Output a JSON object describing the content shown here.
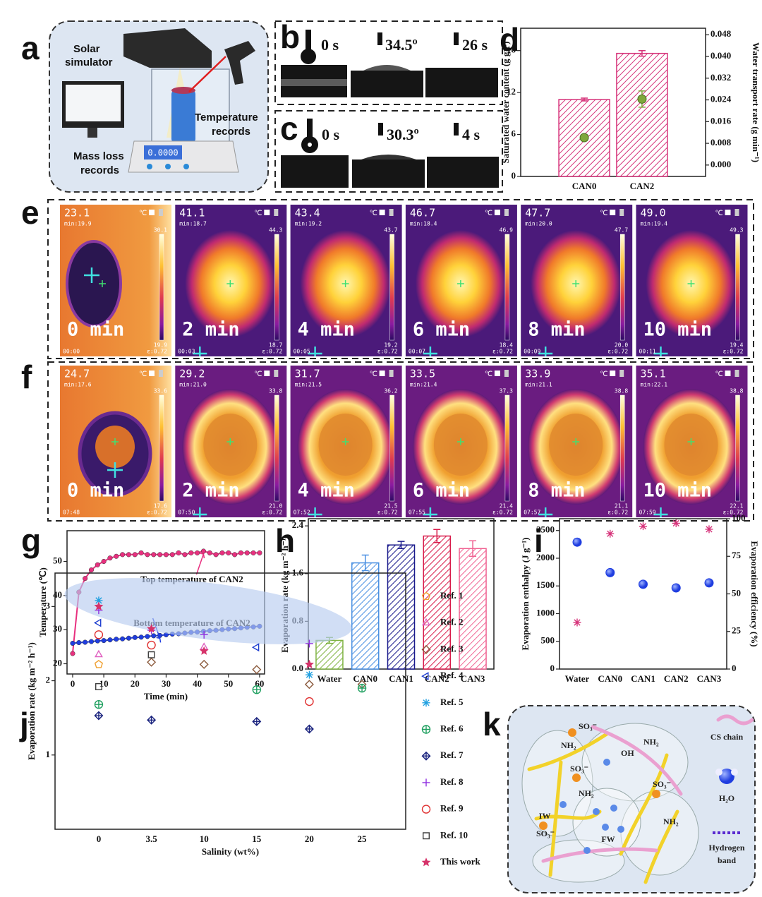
{
  "panel_labels": [
    "a",
    "b",
    "c",
    "d",
    "e",
    "f",
    "g",
    "h",
    "i",
    "j",
    "k"
  ],
  "a": {
    "solar_simulator": [
      "Solar",
      "simulator"
    ],
    "temperature_records": [
      "Temperature",
      "records"
    ],
    "mass_loss_records": [
      "Mass loss",
      "records"
    ],
    "display": "0.0000"
  },
  "b": {
    "texts": [
      "0 s",
      "34.5º",
      "26 s"
    ]
  },
  "c": {
    "texts": [
      "0 s",
      "30.3º",
      "4 s"
    ]
  },
  "thermal": {
    "unit": "℃",
    "emissivity": "ε:0.72",
    "e": [
      {
        "reading": "23.1",
        "min": "min:19.9",
        "bar_max": "30.1",
        "bar_min": "19.9",
        "time": "0 min",
        "clock": "00:00"
      },
      {
        "reading": "41.1",
        "min": "min:18.7",
        "bar_max": "44.3",
        "bar_min": "18.7",
        "time": "2 min",
        "clock": "00:03"
      },
      {
        "reading": "43.4",
        "min": "min:19.2",
        "bar_max": "43.7",
        "bar_min": "19.2",
        "time": "4 min",
        "clock": "00:05"
      },
      {
        "reading": "46.7",
        "min": "min:18.4",
        "bar_max": "46.9",
        "bar_min": "18.4",
        "time": "6 min",
        "clock": "00:07"
      },
      {
        "reading": "47.7",
        "min": "min:20.0",
        "bar_max": "47.7",
        "bar_min": "20.0",
        "time": "8 min",
        "clock": "00:09"
      },
      {
        "reading": "49.0",
        "min": "min:19.4",
        "bar_max": "49.3",
        "bar_min": "19.4",
        "time": "10 min",
        "clock": "00:11"
      }
    ],
    "f": [
      {
        "reading": "24.7",
        "min": "min:17.6",
        "bar_max": "33.6",
        "bar_min": "17.6",
        "time": "0 min",
        "clock": "07:48"
      },
      {
        "reading": "29.2",
        "min": "min:21.0",
        "bar_max": "33.8",
        "bar_min": "21.0",
        "time": "2 min",
        "clock": "07:50"
      },
      {
        "reading": "31.7",
        "min": "min:21.5",
        "bar_max": "36.2",
        "bar_min": "21.5",
        "time": "4 min",
        "clock": "07:52"
      },
      {
        "reading": "33.5",
        "min": "min:21.4",
        "bar_max": "37.3",
        "bar_min": "21.4",
        "time": "6 min",
        "clock": "07:55"
      },
      {
        "reading": "33.9",
        "min": "min:21.1",
        "bar_max": "38.8",
        "bar_min": "21.1",
        "time": "8 min",
        "clock": "07:57"
      },
      {
        "reading": "35.1",
        "min": "min:22.1",
        "bar_max": "38.8",
        "bar_min": "22.1",
        "time": "10 min",
        "clock": "07:59"
      }
    ]
  },
  "k": {
    "cs_chain": "CS chain",
    "water": "H₂O",
    "hydrogen_band": [
      "Hydrogen",
      "band"
    ],
    "fw": "FW",
    "iw": "IW",
    "nh2": "NH₂",
    "so3": "SO₃⁻",
    "oh": "OH"
  },
  "chart_data": [
    {
      "type": "bar",
      "categories": [
        "CAN0",
        "CAN2"
      ],
      "ylabel": "Saturated water content (g g⁻¹)",
      "y2label": "Water transport rate (g min⁻¹)",
      "ylim": [
        0,
        21.2
      ],
      "yticks": [
        0,
        6,
        12,
        18
      ],
      "y2lim": [
        -0.0042,
        0.0504
      ],
      "y2ticks": [
        {
          "value": 0,
          "label": "0.000"
        },
        {
          "value": 0.008,
          "label": "0.008"
        },
        {
          "value": 0.016,
          "label": "0.016"
        },
        {
          "value": 0.024,
          "label": "0.024"
        },
        {
          "value": 0.032,
          "label": "0.032"
        },
        {
          "value": 0.04,
          "label": "0.040"
        },
        {
          "value": 0.048,
          "label": "0.048"
        }
      ],
      "series": [
        {
          "color": "#d6337a",
          "hatch": true,
          "values": [
            11.0,
            17.6
          ],
          "errors": [
            0.2,
            0.4
          ]
        },
        {
          "color": "#7fa83c",
          "axis": "y2",
          "marker": "circle-filled",
          "values": [
            0.0101,
            0.0243
          ],
          "errors": [
            0.001,
            0.003
          ]
        }
      ]
    },
    {
      "type": "line",
      "xlabel": "Time (min)",
      "ylabel": "Temperature (℃)",
      "xlim": [
        -1.8,
        61.6
      ],
      "xticks": [
        0,
        10,
        20,
        30,
        40,
        50,
        60
      ],
      "ylim": [
        17,
        59
      ],
      "yticks": [
        20,
        30,
        40,
        50
      ],
      "x": [
        0,
        2,
        4,
        6,
        8,
        10,
        12,
        14,
        16,
        18,
        20,
        22,
        24,
        26,
        28,
        30,
        32,
        34,
        36,
        38,
        40,
        42,
        44,
        46,
        48,
        50,
        52,
        54,
        56,
        58,
        60
      ],
      "series": [
        {
          "name": "Top temperature of CAN2",
          "color": "#e8307f",
          "values": [
            23,
            41,
            45,
            47.5,
            49,
            50,
            51,
            51.5,
            52,
            52,
            52,
            52.5,
            52,
            52,
            52,
            52,
            52,
            52.5,
            52,
            52.5,
            52.5,
            53,
            52.5,
            52,
            52.5,
            52.5,
            52,
            52.5,
            52.5,
            52.5,
            52.5
          ]
        },
        {
          "name": "Bottom temperature of CAN2",
          "color": "#1f3de0",
          "values": [
            26.0,
            26.2,
            26.3,
            26.5,
            26.7,
            26.8,
            27.0,
            27.2,
            27.3,
            27.5,
            27.7,
            27.8,
            28.0,
            28.2,
            28.3,
            28.5,
            28.7,
            28.8,
            29.0,
            29.2,
            29.3,
            29.5,
            29.7,
            29.8,
            30.0,
            30.2,
            30.3,
            30.5,
            30.7,
            30.8,
            31.0
          ]
        }
      ]
    },
    {
      "type": "bar",
      "categories": [
        "Water",
        "CAN0",
        "CAN1",
        "CAN2",
        "CAN3"
      ],
      "ylabel": "Evaporation rate (kg m⁻² h⁻¹)",
      "ylim": [
        0,
        2.52
      ],
      "yticks": [
        {
          "value": 0,
          "label": "0.0"
        },
        0.8,
        1.6,
        2.4
      ],
      "series": [
        {
          "colors": [
            "#7fb342",
            "#4a90e2",
            "#1a1a8c",
            "#d81b4a",
            "#f06292"
          ],
          "hatch": true,
          "values": [
            0.48,
            1.78,
            2.08,
            2.23,
            2.02
          ],
          "errors": [
            0.05,
            0.13,
            0.06,
            0.11,
            0.13
          ]
        }
      ]
    },
    {
      "type": "scatter",
      "categories": [
        "Water",
        "CAN0",
        "CAN1",
        "CAN2",
        "CAN3"
      ],
      "ylabel": "Evaporation enthalpy (J g⁻¹)",
      "y2label": "Evaporation efficiency (%)",
      "ylim": [
        0,
        2713
      ],
      "yticks": [
        0,
        500,
        1000,
        1500,
        2000,
        2500
      ],
      "y2lim": [
        0,
        100
      ],
      "y2ticks": [
        0,
        25,
        50,
        75,
        100
      ],
      "series": [
        {
          "color": "#1f3de0",
          "marker": "ball",
          "values": [
            2290,
            1740,
            1530,
            1465,
            1555
          ]
        },
        {
          "color": "#d6337a",
          "marker": "asterisk",
          "axis": "y2",
          "values": [
            31,
            90,
            95,
            97,
            93
          ]
        }
      ]
    },
    {
      "type": "scatter",
      "categories": [
        "0",
        "3.5",
        "10",
        "15",
        "20",
        "25"
      ],
      "xlabel": "Salinity (wt%)",
      "ylabel": "Evaporation rate (kg m⁻² h⁻¹)",
      "ylim": [
        0,
        3.45
      ],
      "yticks": [
        1,
        2,
        3
      ],
      "series": [
        {
          "name": "Ref. 1",
          "color": "#f0a030",
          "marker": "pentagon",
          "values": [
            2.22,
            null,
            null,
            null,
            null,
            null
          ]
        },
        {
          "name": "Ref. 2",
          "color": "#e060c0",
          "marker": "triangle",
          "values": [
            2.35,
            null,
            2.45,
            null,
            null,
            null
          ]
        },
        {
          "name": "Ref. 3",
          "color": "#8b5a3c",
          "marker": "diamond",
          "values": [
            null,
            2.25,
            2.22,
            2.15,
            1.95,
            1.95
          ]
        },
        {
          "name": "Ref. 4",
          "color": "#2040d0",
          "marker": "triangle-left",
          "values": [
            2.78,
            null,
            null,
            2.45,
            null,
            null
          ]
        },
        {
          "name": "Ref. 5",
          "color": "#20a0e0",
          "marker": "asterisk",
          "values": [
            3.08,
            null,
            null,
            null,
            2.08,
            null
          ]
        },
        {
          "name": "Ref. 6",
          "color": "#20a060",
          "marker": "circle-plus",
          "values": [
            1.68,
            null,
            null,
            1.88,
            null,
            1.9
          ]
        },
        {
          "name": "Ref. 7",
          "color": "#1a237e",
          "marker": "diamond-plus",
          "values": [
            1.53,
            1.47,
            null,
            1.45,
            1.35,
            null
          ]
        },
        {
          "name": "Ref. 8",
          "color": "#9030e0",
          "marker": "plus",
          "values": [
            2.95,
            2.68,
            2.62,
            null,
            2.5,
            null
          ]
        },
        {
          "name": "Ref. 9",
          "color": "#e03030",
          "marker": "circle",
          "values": [
            2.62,
            2.48,
            null,
            null,
            1.72,
            null
          ]
        },
        {
          "name": "Ref. 10",
          "color": "#404040",
          "marker": "square",
          "values": [
            1.92,
            2.35,
            null,
            null,
            null,
            null
          ]
        },
        {
          "name": "This work",
          "color": "#d6336a",
          "marker": "star",
          "values": [
            3.0,
            2.7,
            2.4,
            null,
            2.22,
            null
          ]
        }
      ]
    }
  ]
}
